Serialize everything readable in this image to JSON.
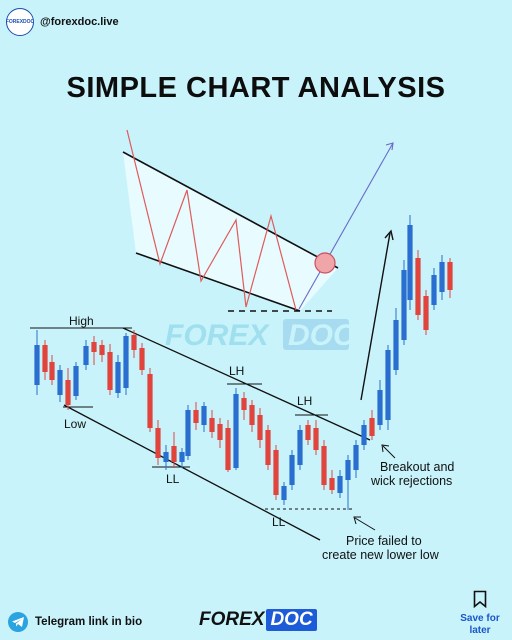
{
  "header": {
    "avatar_text": "FOREXDOC",
    "handle": "@forexdoc.live"
  },
  "title": "SIMPLE CHART ANALYSIS",
  "watermark": {
    "part_a": "FOREX",
    "part_b": "DOC"
  },
  "chart_data": {
    "type": "candlestick",
    "title": "SIMPLE CHART ANALYSIS",
    "labels": [
      "High",
      "Low",
      "LH",
      "LL",
      "LH",
      "LL"
    ],
    "annotations": [
      "Breakout and",
      "wick rejections",
      "Price failed to",
      "create new lower low"
    ],
    "bull_color": "#2a6fcf",
    "bear_color": "#e0443c"
  },
  "annotations": {
    "high": "High",
    "low": "Low",
    "lh1": "LH",
    "ll1": "LL",
    "lh2": "LH",
    "ll2": "LL",
    "breakout_1": "Breakout and",
    "breakout_2": "wick rejections",
    "failed_1": "Price failed to",
    "failed_2": "create new lower low"
  },
  "footer": {
    "telegram": "Telegram link in bio",
    "brand_a": "FOREX",
    "brand_b": "DOC",
    "save_1": "Save for",
    "save_2": "later"
  },
  "colors": {
    "background": "#c8f3fb",
    "bull": "#2a6fcf",
    "bear": "#e0443c",
    "zigzag": "#e05a5a",
    "arrow": "#6060c0"
  }
}
